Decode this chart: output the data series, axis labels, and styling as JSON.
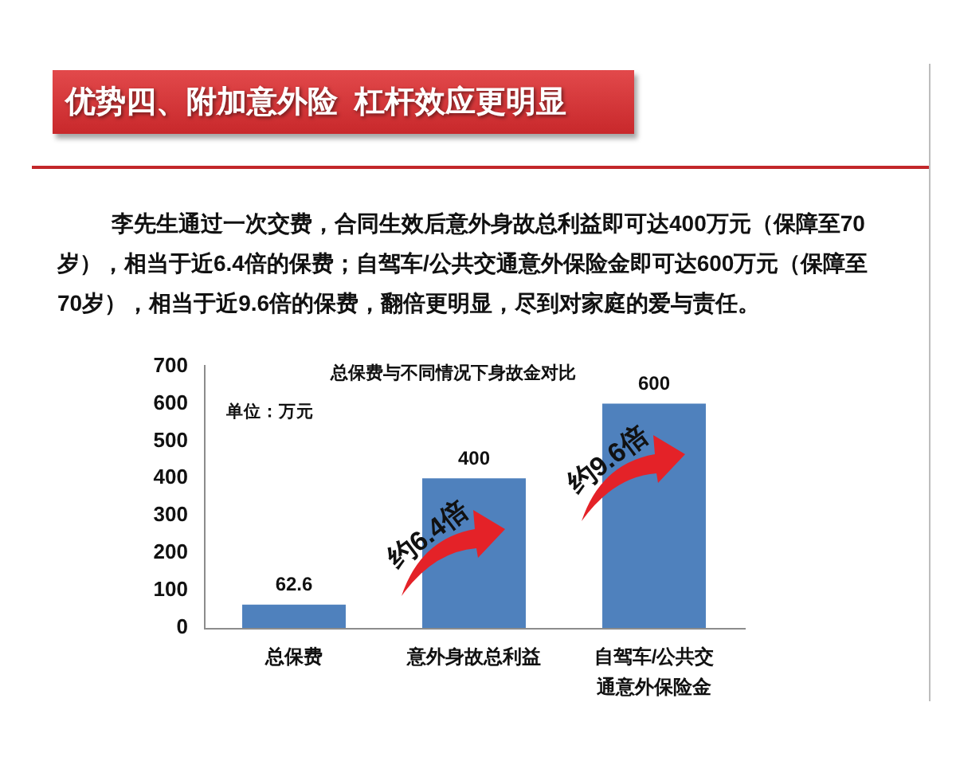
{
  "chart_data": {
    "type": "bar",
    "title": "优势四、附加意外险 杠杆效应更明显",
    "subtitle": "李先生通过一次交费，合同生效后意外身故总利益即可达400万元（保障至70岁），相当于近6.4倍的保费；自驾车/公共交通意外保险金即可达600万元（保障至70岁），相当于近9.6倍的保费，翻倍更明显，尽到对家庭的爱与责任。",
    "categories": [
      "总保费",
      "意外身故总利益",
      "自驾车/公共交通意外保险金"
    ],
    "values": [
      62.6,
      400,
      600
    ],
    "color": "#4f81bd",
    "ylim": [
      0,
      700
    ],
    "yticks": [
      0,
      100,
      200,
      300,
      400,
      500,
      600,
      700
    ],
    "data_labels": true,
    "annotations": [
      "总保费与不同情况下身故金对比",
      "单位：万元",
      "约6.4倍",
      "约9.6倍"
    ]
  }
}
